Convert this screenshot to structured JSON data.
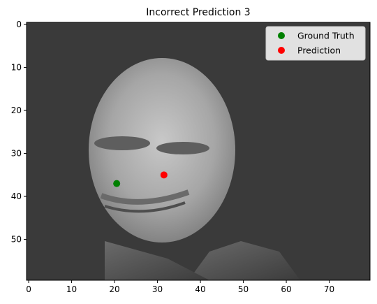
{
  "chart_data": {
    "type": "scatter",
    "title": "Incorrect Prediction 3",
    "background": "grayscale face image",
    "image_size": [
      80,
      60
    ],
    "xlim": [
      -0.5,
      79.5
    ],
    "ylim": [
      59.5,
      -0.5
    ],
    "xticks": [
      0,
      10,
      20,
      30,
      40,
      50,
      60,
      70
    ],
    "yticks": [
      0,
      10,
      20,
      30,
      40,
      50
    ],
    "grid": false,
    "legend_position": "top-right",
    "series": [
      {
        "name": "Ground Truth",
        "color": "#008000",
        "points": [
          {
            "x": 20.5,
            "y": 37
          }
        ]
      },
      {
        "name": "Prediction",
        "color": "#ff0000",
        "points": [
          {
            "x": 31.5,
            "y": 35
          }
        ]
      }
    ]
  }
}
